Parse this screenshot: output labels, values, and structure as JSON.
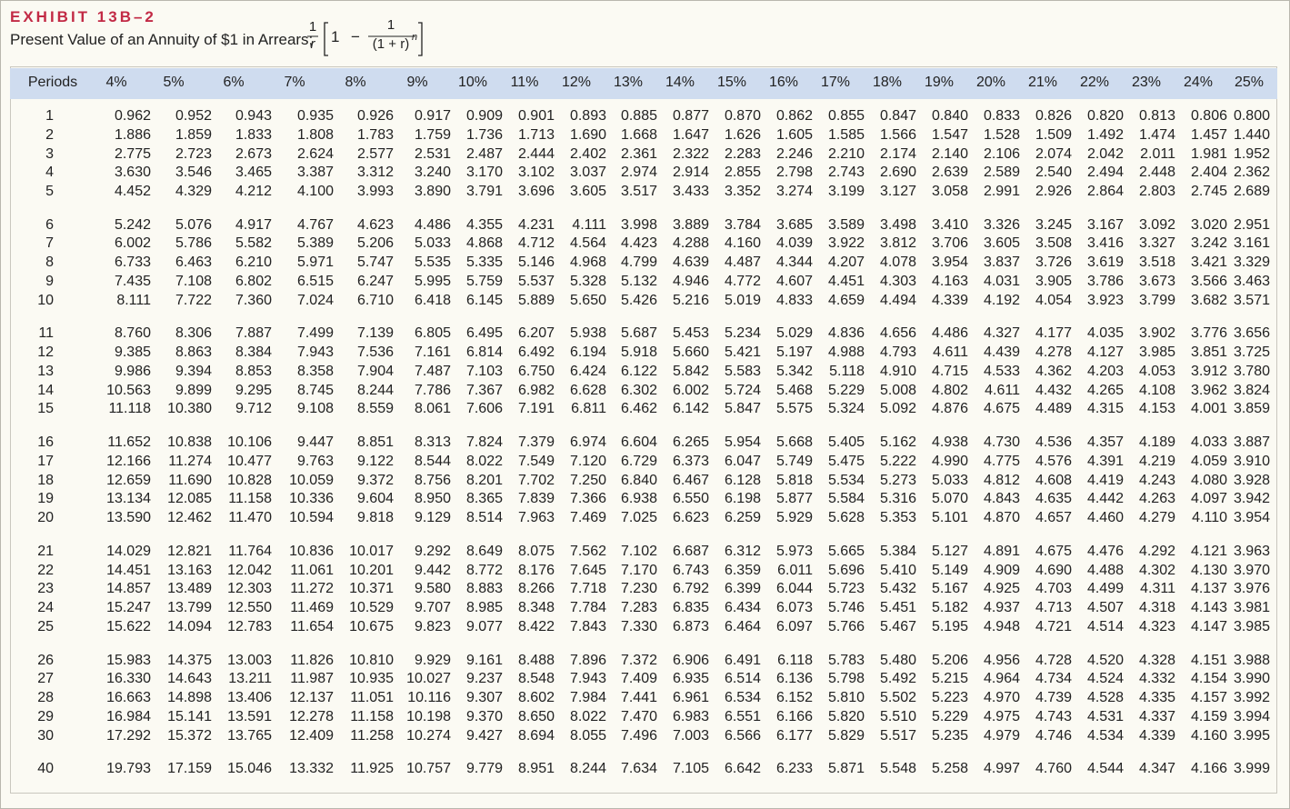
{
  "header": {
    "title": "EXHIBIT 13B–2",
    "subtitle": "Present Value of an Annuity of $1 in Arrears;",
    "formula": {
      "outer_num": "1",
      "outer_den": "r",
      "one": "1",
      "minus": "−",
      "inner_num": "1",
      "inner_den": "(1 + r)",
      "exponent": "n"
    }
  },
  "table": {
    "columns": [
      "Periods",
      "4%",
      "5%",
      "6%",
      "7%",
      "8%",
      "9%",
      "10%",
      "11%",
      "12%",
      "13%",
      "14%",
      "15%",
      "16%",
      "17%",
      "18%",
      "19%",
      "20%",
      "21%",
      "22%",
      "23%",
      "24%",
      "25%"
    ],
    "groups": [
      [
        [
          "1",
          "0.962",
          "0.952",
          "0.943",
          "0.935",
          "0.926",
          "0.917",
          "0.909",
          "0.901",
          "0.893",
          "0.885",
          "0.877",
          "0.870",
          "0.862",
          "0.855",
          "0.847",
          "0.840",
          "0.833",
          "0.826",
          "0.820",
          "0.813",
          "0.806",
          "0.800"
        ],
        [
          "2",
          "1.886",
          "1.859",
          "1.833",
          "1.808",
          "1.783",
          "1.759",
          "1.736",
          "1.713",
          "1.690",
          "1.668",
          "1.647",
          "1.626",
          "1.605",
          "1.585",
          "1.566",
          "1.547",
          "1.528",
          "1.509",
          "1.492",
          "1.474",
          "1.457",
          "1.440"
        ],
        [
          "3",
          "2.775",
          "2.723",
          "2.673",
          "2.624",
          "2.577",
          "2.531",
          "2.487",
          "2.444",
          "2.402",
          "2.361",
          "2.322",
          "2.283",
          "2.246",
          "2.210",
          "2.174",
          "2.140",
          "2.106",
          "2.074",
          "2.042",
          "2.011",
          "1.981",
          "1.952"
        ],
        [
          "4",
          "3.630",
          "3.546",
          "3.465",
          "3.387",
          "3.312",
          "3.240",
          "3.170",
          "3.102",
          "3.037",
          "2.974",
          "2.914",
          "2.855",
          "2.798",
          "2.743",
          "2.690",
          "2.639",
          "2.589",
          "2.540",
          "2.494",
          "2.448",
          "2.404",
          "2.362"
        ],
        [
          "5",
          "4.452",
          "4.329",
          "4.212",
          "4.100",
          "3.993",
          "3.890",
          "3.791",
          "3.696",
          "3.605",
          "3.517",
          "3.433",
          "3.352",
          "3.274",
          "3.199",
          "3.127",
          "3.058",
          "2.991",
          "2.926",
          "2.864",
          "2.803",
          "2.745",
          "2.689"
        ]
      ],
      [
        [
          "6",
          "5.242",
          "5.076",
          "4.917",
          "4.767",
          "4.623",
          "4.486",
          "4.355",
          "4.231",
          "4.111",
          "3.998",
          "3.889",
          "3.784",
          "3.685",
          "3.589",
          "3.498",
          "3.410",
          "3.326",
          "3.245",
          "3.167",
          "3.092",
          "3.020",
          "2.951"
        ],
        [
          "7",
          "6.002",
          "5.786",
          "5.582",
          "5.389",
          "5.206",
          "5.033",
          "4.868",
          "4.712",
          "4.564",
          "4.423",
          "4.288",
          "4.160",
          "4.039",
          "3.922",
          "3.812",
          "3.706",
          "3.605",
          "3.508",
          "3.416",
          "3.327",
          "3.242",
          "3.161"
        ],
        [
          "8",
          "6.733",
          "6.463",
          "6.210",
          "5.971",
          "5.747",
          "5.535",
          "5.335",
          "5.146",
          "4.968",
          "4.799",
          "4.639",
          "4.487",
          "4.344",
          "4.207",
          "4.078",
          "3.954",
          "3.837",
          "3.726",
          "3.619",
          "3.518",
          "3.421",
          "3.329"
        ],
        [
          "9",
          "7.435",
          "7.108",
          "6.802",
          "6.515",
          "6.247",
          "5.995",
          "5.759",
          "5.537",
          "5.328",
          "5.132",
          "4.946",
          "4.772",
          "4.607",
          "4.451",
          "4.303",
          "4.163",
          "4.031",
          "3.905",
          "3.786",
          "3.673",
          "3.566",
          "3.463"
        ],
        [
          "10",
          "8.111",
          "7.722",
          "7.360",
          "7.024",
          "6.710",
          "6.418",
          "6.145",
          "5.889",
          "5.650",
          "5.426",
          "5.216",
          "5.019",
          "4.833",
          "4.659",
          "4.494",
          "4.339",
          "4.192",
          "4.054",
          "3.923",
          "3.799",
          "3.682",
          "3.571"
        ]
      ],
      [
        [
          "11",
          "8.760",
          "8.306",
          "7.887",
          "7.499",
          "7.139",
          "6.805",
          "6.495",
          "6.207",
          "5.938",
          "5.687",
          "5.453",
          "5.234",
          "5.029",
          "4.836",
          "4.656",
          "4.486",
          "4.327",
          "4.177",
          "4.035",
          "3.902",
          "3.776",
          "3.656"
        ],
        [
          "12",
          "9.385",
          "8.863",
          "8.384",
          "7.943",
          "7.536",
          "7.161",
          "6.814",
          "6.492",
          "6.194",
          "5.918",
          "5.660",
          "5.421",
          "5.197",
          "4.988",
          "4.793",
          "4.611",
          "4.439",
          "4.278",
          "4.127",
          "3.985",
          "3.851",
          "3.725"
        ],
        [
          "13",
          "9.986",
          "9.394",
          "8.853",
          "8.358",
          "7.904",
          "7.487",
          "7.103",
          "6.750",
          "6.424",
          "6.122",
          "5.842",
          "5.583",
          "5.342",
          "5.118",
          "4.910",
          "4.715",
          "4.533",
          "4.362",
          "4.203",
          "4.053",
          "3.912",
          "3.780"
        ],
        [
          "14",
          "10.563",
          "9.899",
          "9.295",
          "8.745",
          "8.244",
          "7.786",
          "7.367",
          "6.982",
          "6.628",
          "6.302",
          "6.002",
          "5.724",
          "5.468",
          "5.229",
          "5.008",
          "4.802",
          "4.611",
          "4.432",
          "4.265",
          "4.108",
          "3.962",
          "3.824"
        ],
        [
          "15",
          "11.118",
          "10.380",
          "9.712",
          "9.108",
          "8.559",
          "8.061",
          "7.606",
          "7.191",
          "6.811",
          "6.462",
          "6.142",
          "5.847",
          "5.575",
          "5.324",
          "5.092",
          "4.876",
          "4.675",
          "4.489",
          "4.315",
          "4.153",
          "4.001",
          "3.859"
        ]
      ],
      [
        [
          "16",
          "11.652",
          "10.838",
          "10.106",
          "9.447",
          "8.851",
          "8.313",
          "7.824",
          "7.379",
          "6.974",
          "6.604",
          "6.265",
          "5.954",
          "5.668",
          "5.405",
          "5.162",
          "4.938",
          "4.730",
          "4.536",
          "4.357",
          "4.189",
          "4.033",
          "3.887"
        ],
        [
          "17",
          "12.166",
          "11.274",
          "10.477",
          "9.763",
          "9.122",
          "8.544",
          "8.022",
          "7.549",
          "7.120",
          "6.729",
          "6.373",
          "6.047",
          "5.749",
          "5.475",
          "5.222",
          "4.990",
          "4.775",
          "4.576",
          "4.391",
          "4.219",
          "4.059",
          "3.910"
        ],
        [
          "18",
          "12.659",
          "11.690",
          "10.828",
          "10.059",
          "9.372",
          "8.756",
          "8.201",
          "7.702",
          "7.250",
          "6.840",
          "6.467",
          "6.128",
          "5.818",
          "5.534",
          "5.273",
          "5.033",
          "4.812",
          "4.608",
          "4.419",
          "4.243",
          "4.080",
          "3.928"
        ],
        [
          "19",
          "13.134",
          "12.085",
          "11.158",
          "10.336",
          "9.604",
          "8.950",
          "8.365",
          "7.839",
          "7.366",
          "6.938",
          "6.550",
          "6.198",
          "5.877",
          "5.584",
          "5.316",
          "5.070",
          "4.843",
          "4.635",
          "4.442",
          "4.263",
          "4.097",
          "3.942"
        ],
        [
          "20",
          "13.590",
          "12.462",
          "11.470",
          "10.594",
          "9.818",
          "9.129",
          "8.514",
          "7.963",
          "7.469",
          "7.025",
          "6.623",
          "6.259",
          "5.929",
          "5.628",
          "5.353",
          "5.101",
          "4.870",
          "4.657",
          "4.460",
          "4.279",
          "4.110",
          "3.954"
        ]
      ],
      [
        [
          "21",
          "14.029",
          "12.821",
          "11.764",
          "10.836",
          "10.017",
          "9.292",
          "8.649",
          "8.075",
          "7.562",
          "7.102",
          "6.687",
          "6.312",
          "5.973",
          "5.665",
          "5.384",
          "5.127",
          "4.891",
          "4.675",
          "4.476",
          "4.292",
          "4.121",
          "3.963"
        ],
        [
          "22",
          "14.451",
          "13.163",
          "12.042",
          "11.061",
          "10.201",
          "9.442",
          "8.772",
          "8.176",
          "7.645",
          "7.170",
          "6.743",
          "6.359",
          "6.011",
          "5.696",
          "5.410",
          "5.149",
          "4.909",
          "4.690",
          "4.488",
          "4.302",
          "4.130",
          "3.970"
        ],
        [
          "23",
          "14.857",
          "13.489",
          "12.303",
          "11.272",
          "10.371",
          "9.580",
          "8.883",
          "8.266",
          "7.718",
          "7.230",
          "6.792",
          "6.399",
          "6.044",
          "5.723",
          "5.432",
          "5.167",
          "4.925",
          "4.703",
          "4.499",
          "4.311",
          "4.137",
          "3.976"
        ],
        [
          "24",
          "15.247",
          "13.799",
          "12.550",
          "11.469",
          "10.529",
          "9.707",
          "8.985",
          "8.348",
          "7.784",
          "7.283",
          "6.835",
          "6.434",
          "6.073",
          "5.746",
          "5.451",
          "5.182",
          "4.937",
          "4.713",
          "4.507",
          "4.318",
          "4.143",
          "3.981"
        ],
        [
          "25",
          "15.622",
          "14.094",
          "12.783",
          "11.654",
          "10.675",
          "9.823",
          "9.077",
          "8.422",
          "7.843",
          "7.330",
          "6.873",
          "6.464",
          "6.097",
          "5.766",
          "5.467",
          "5.195",
          "4.948",
          "4.721",
          "4.514",
          "4.323",
          "4.147",
          "3.985"
        ]
      ],
      [
        [
          "26",
          "15.983",
          "14.375",
          "13.003",
          "11.826",
          "10.810",
          "9.929",
          "9.161",
          "8.488",
          "7.896",
          "7.372",
          "6.906",
          "6.491",
          "6.118",
          "5.783",
          "5.480",
          "5.206",
          "4.956",
          "4.728",
          "4.520",
          "4.328",
          "4.151",
          "3.988"
        ],
        [
          "27",
          "16.330",
          "14.643",
          "13.211",
          "11.987",
          "10.935",
          "10.027",
          "9.237",
          "8.548",
          "7.943",
          "7.409",
          "6.935",
          "6.514",
          "6.136",
          "5.798",
          "5.492",
          "5.215",
          "4.964",
          "4.734",
          "4.524",
          "4.332",
          "4.154",
          "3.990"
        ],
        [
          "28",
          "16.663",
          "14.898",
          "13.406",
          "12.137",
          "11.051",
          "10.116",
          "9.307",
          "8.602",
          "7.984",
          "7.441",
          "6.961",
          "6.534",
          "6.152",
          "5.810",
          "5.502",
          "5.223",
          "4.970",
          "4.739",
          "4.528",
          "4.335",
          "4.157",
          "3.992"
        ],
        [
          "29",
          "16.984",
          "15.141",
          "13.591",
          "12.278",
          "11.158",
          "10.198",
          "9.370",
          "8.650",
          "8.022",
          "7.470",
          "6.983",
          "6.551",
          "6.166",
          "5.820",
          "5.510",
          "5.229",
          "4.975",
          "4.743",
          "4.531",
          "4.337",
          "4.159",
          "3.994"
        ],
        [
          "30",
          "17.292",
          "15.372",
          "13.765",
          "12.409",
          "11.258",
          "10.274",
          "9.427",
          "8.694",
          "8.055",
          "7.496",
          "7.003",
          "6.566",
          "6.177",
          "5.829",
          "5.517",
          "5.235",
          "4.979",
          "4.746",
          "4.534",
          "4.339",
          "4.160",
          "3.995"
        ]
      ],
      [
        [
          "40",
          "19.793",
          "17.159",
          "15.046",
          "13.332",
          "11.925",
          "10.757",
          "9.779",
          "8.951",
          "8.244",
          "7.634",
          "7.105",
          "6.642",
          "6.233",
          "5.871",
          "5.548",
          "5.258",
          "4.997",
          "4.760",
          "4.544",
          "4.347",
          "4.166",
          "3.999"
        ]
      ]
    ]
  }
}
